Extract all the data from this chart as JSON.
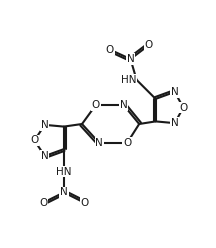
{
  "bg_color": "#ffffff",
  "line_color": "#1a1a1a",
  "line_width": 1.5,
  "font_size": 7.5,
  "figsize": [
    2.16,
    2.48
  ],
  "dpi": 100,
  "xlim": [
    -1,
    11
  ],
  "ylim": [
    -1,
    13
  ]
}
